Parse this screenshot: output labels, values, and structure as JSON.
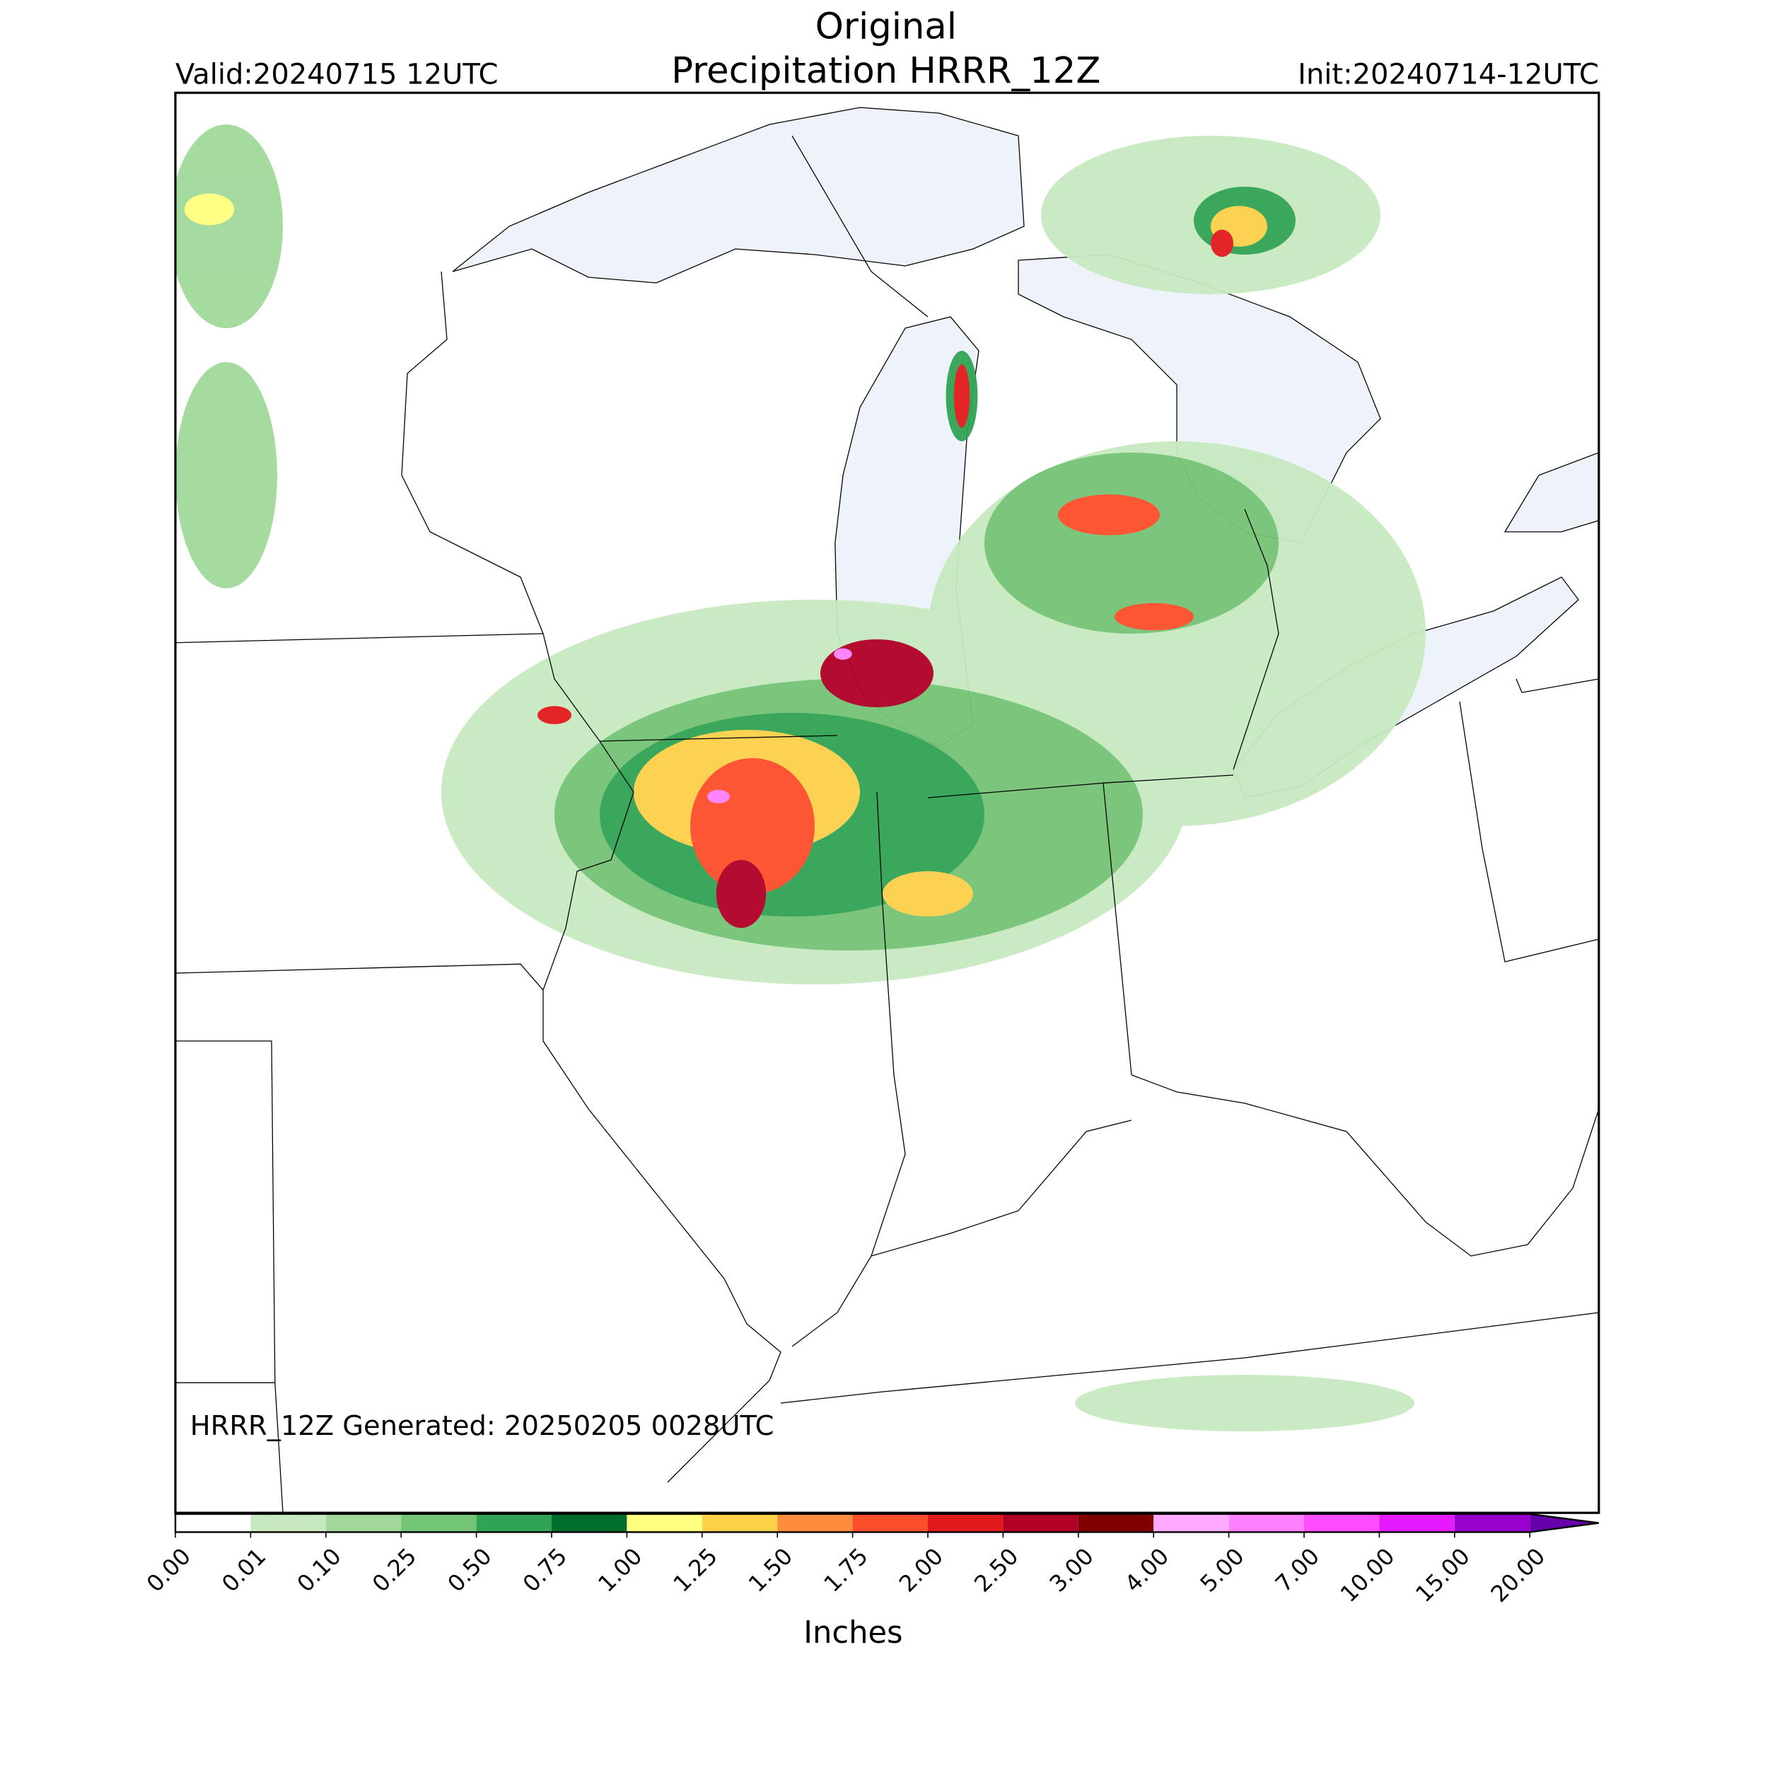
{
  "header": {
    "title_line1": "Original",
    "title_line2": "Precipitation HRRR_12Z",
    "valid": "Valid:20240715 12UTC",
    "init": "Init:20240714-12UTC"
  },
  "map": {
    "generated": "HRRR_12Z Generated: 20250205 0028UTC"
  },
  "colorbar": {
    "label": "Inches",
    "ticks": [
      "0.00",
      "0.01",
      "0.10",
      "0.25",
      "0.50",
      "0.75",
      "1.00",
      "1.25",
      "1.50",
      "1.75",
      "2.00",
      "2.50",
      "3.00",
      "4.00",
      "5.00",
      "7.00",
      "10.00",
      "15.00",
      "20.00"
    ],
    "colors": [
      "#ffffff",
      "#c7e9c0",
      "#a1d99b",
      "#74c476",
      "#31a354",
      "#006d2c",
      "#ffff80",
      "#fdd04a",
      "#fd8d3c",
      "#fc4e2a",
      "#e31a1c",
      "#b10026",
      "#800000",
      "#ffaaff",
      "#ff80ff",
      "#ff4dff",
      "#e619ff",
      "#9900cc"
    ],
    "extend_color": "#6600aa"
  }
}
